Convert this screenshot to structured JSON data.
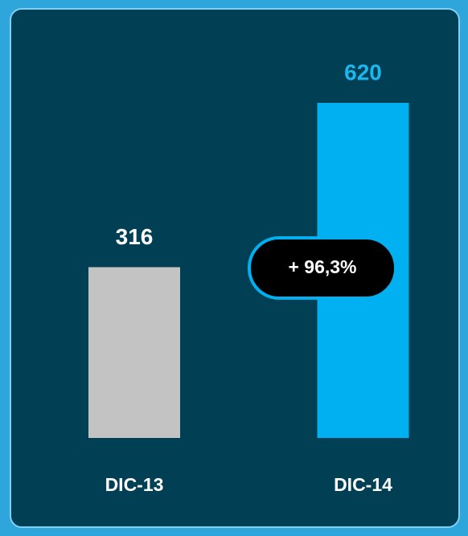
{
  "chart_data": {
    "type": "bar",
    "categories": [
      "DIC-13",
      "DIC-14"
    ],
    "values": [
      316,
      620
    ],
    "colors": [
      "#c3c3c3",
      "#00b0f0"
    ],
    "label_colors": [
      "#ffffff",
      "#1ab8ef"
    ],
    "annotation": "+ 96,3%"
  }
}
